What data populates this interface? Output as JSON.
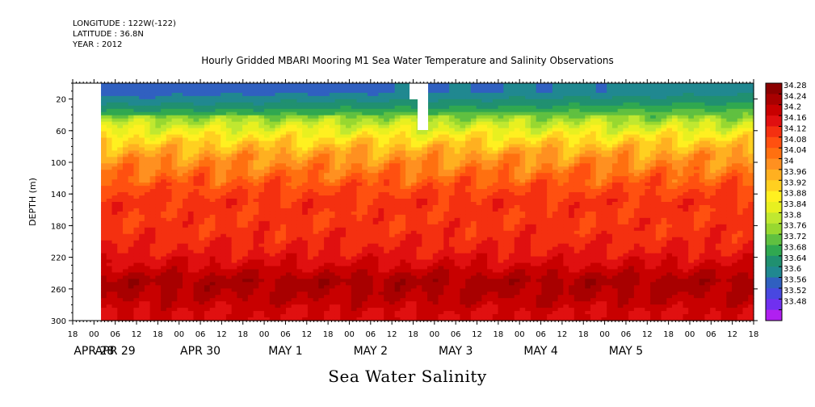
{
  "header": {
    "longitude": "LONGITUDE : 122W(-122)",
    "latitude": "LATITUDE : 36.8N",
    "year": "YEAR : 2012"
  },
  "chart_data": {
    "type": "heatmap",
    "title": "Hourly Gridded MBARI Mooring M1 Sea Water Temperature and Salinity Observations",
    "main_label": "Sea Water Salinity",
    "ylabel": "DEPTH (m)",
    "ylim": [
      300,
      0
    ],
    "y_ticks": [
      20,
      60,
      100,
      140,
      180,
      220,
      260,
      300
    ],
    "x_hour_ticks": [
      "18",
      "00",
      "06",
      "12",
      "18",
      "00",
      "06",
      "12",
      "18",
      "00",
      "06",
      "12",
      "18",
      "00",
      "06",
      "12",
      "18",
      "00",
      "06",
      "12",
      "18",
      "00",
      "06",
      "12",
      "18",
      "00",
      "06",
      "12",
      "18",
      "00",
      "06",
      "12",
      "18"
    ],
    "x_day_labels": [
      "APR 28",
      "APR 29",
      "APR 30",
      "MAY  1",
      "MAY  2",
      "MAY  3",
      "MAY  4",
      "MAY  5"
    ],
    "x_day_label_ticks": [
      1,
      2,
      6,
      10,
      14,
      18,
      22,
      26
    ],
    "data_start_tick": 1.33,
    "colorbar": {
      "levels": [
        34.28,
        34.24,
        34.2,
        34.16,
        34.12,
        34.08,
        34.04,
        34,
        33.96,
        33.92,
        33.88,
        33.84,
        33.8,
        33.76,
        33.72,
        33.68,
        33.64,
        33.6,
        33.56,
        33.52,
        33.48
      ],
      "colors": [
        "#8b0000",
        "#a80000",
        "#c80000",
        "#e01010",
        "#f43010",
        "#ff5010",
        "#ff7010",
        "#ff9020",
        "#ffb020",
        "#ffd020",
        "#fff020",
        "#e8f020",
        "#c0e830",
        "#98d830",
        "#60c040",
        "#30a850",
        "#209070",
        "#208890",
        "#3060c0",
        "#4848e0",
        "#7030f0",
        "#b020f0"
      ]
    },
    "profile": [
      {
        "depth": 10,
        "value": 33.62
      },
      {
        "depth": 30,
        "value": 33.7
      },
      {
        "depth": 50,
        "value": 33.82
      },
      {
        "depth": 70,
        "value": 33.92
      },
      {
        "depth": 90,
        "value": 34.0
      },
      {
        "depth": 110,
        "value": 34.05
      },
      {
        "depth": 130,
        "value": 34.1
      },
      {
        "depth": 150,
        "value": 34.14
      },
      {
        "depth": 170,
        "value": 34.13
      },
      {
        "depth": 190,
        "value": 34.14
      },
      {
        "depth": 210,
        "value": 34.16
      },
      {
        "depth": 230,
        "value": 34.2
      },
      {
        "depth": 250,
        "value": 34.26
      },
      {
        "depth": 270,
        "value": 34.24
      },
      {
        "depth": 290,
        "value": 34.2
      }
    ]
  }
}
